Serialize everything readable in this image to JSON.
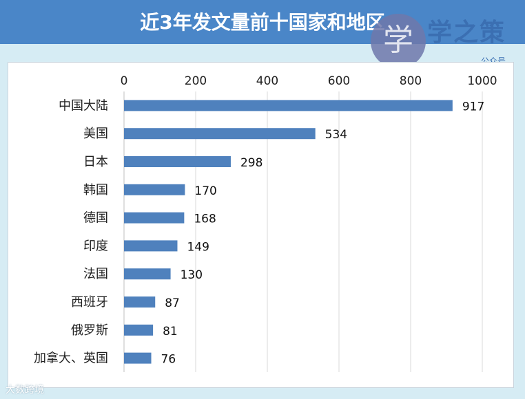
{
  "header": {
    "title": "近3年发文量前十国家和地区",
    "logo_glyph": "学",
    "logo_text": "学之策",
    "logo_sub": "公众号"
  },
  "watermark": "大数跨境",
  "chart_data": {
    "type": "bar",
    "orientation": "horizontal",
    "title": "近3年发文量前十国家和地区",
    "xlabel": "",
    "ylabel": "",
    "xlim": [
      0,
      1000
    ],
    "ticks": [
      0,
      200,
      400,
      600,
      800,
      1000
    ],
    "x_axis_position": "top",
    "grid": true,
    "categories": [
      "中国大陆",
      "美国",
      "日本",
      "韩国",
      "德国",
      "印度",
      "法国",
      "西班牙",
      "俄罗斯",
      "加拿大、英国"
    ],
    "values": [
      917,
      534,
      298,
      170,
      168,
      149,
      130,
      87,
      81,
      76
    ],
    "bar_color": "#4f81bd"
  }
}
